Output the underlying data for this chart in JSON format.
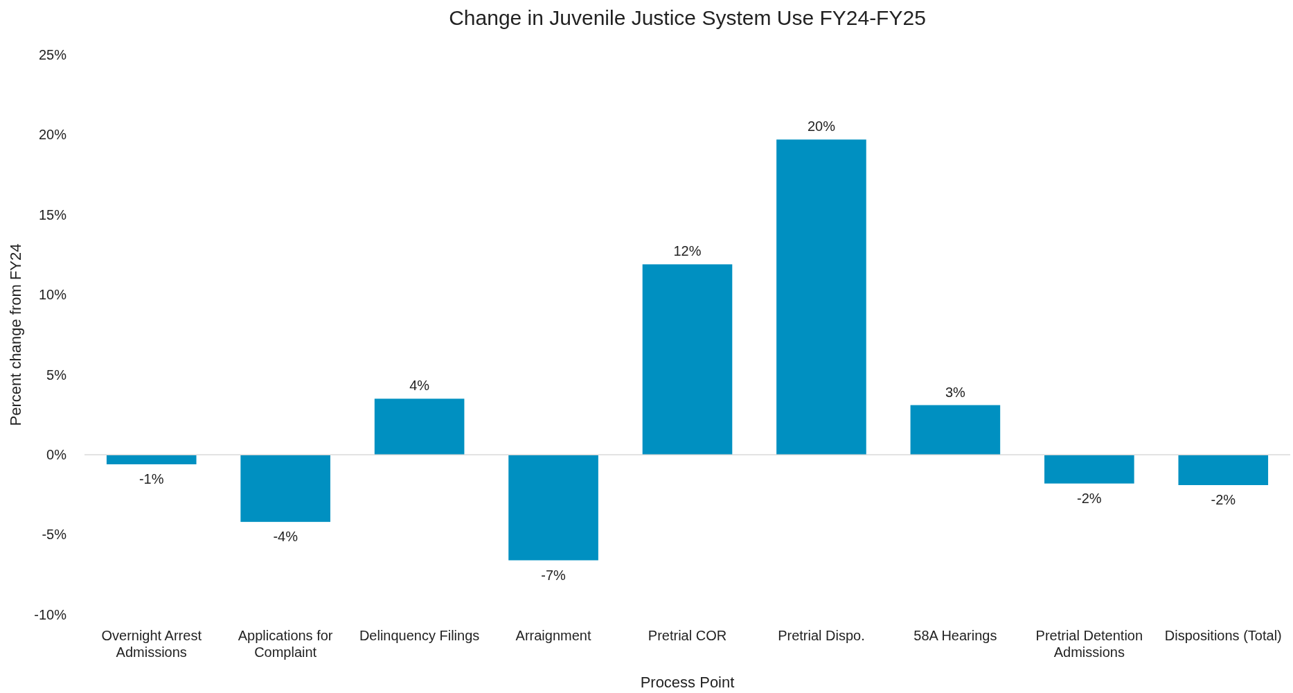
{
  "chart_data": {
    "type": "bar",
    "title": "Change in Juvenile Justice System Use FY24-FY25",
    "xlabel": "Process Point",
    "ylabel": "Percent change from FY24",
    "categories": [
      "Overnight Arrest Admissions",
      "Applications for Complaint",
      "Delinquency Filings",
      "Arraignment",
      "Pretrial COR",
      "Pretrial Dispo.",
      "58A Hearings",
      "Pretrial Detention Admissions",
      "Dispositions (Total)"
    ],
    "values": [
      -0.6,
      -4.2,
      3.5,
      -6.6,
      11.9,
      19.7,
      3.1,
      -1.8,
      -1.9
    ],
    "value_labels": [
      "-1%",
      "-4%",
      "4%",
      "-7%",
      "12%",
      "20%",
      "3%",
      "-2%",
      "-2%"
    ],
    "color": "#0090c1",
    "legend": false,
    "ylim": [
      -10,
      25
    ],
    "yticks": [
      {
        "value": -10,
        "label": "-10%"
      },
      {
        "value": -5,
        "label": "-5%"
      },
      {
        "value": 0,
        "label": "0%"
      },
      {
        "value": 5,
        "label": "5%"
      },
      {
        "value": 10,
        "label": "10%"
      },
      {
        "value": 15,
        "label": "15%"
      },
      {
        "value": 20,
        "label": "20%"
      },
      {
        "value": 25,
        "label": "25%"
      }
    ]
  }
}
